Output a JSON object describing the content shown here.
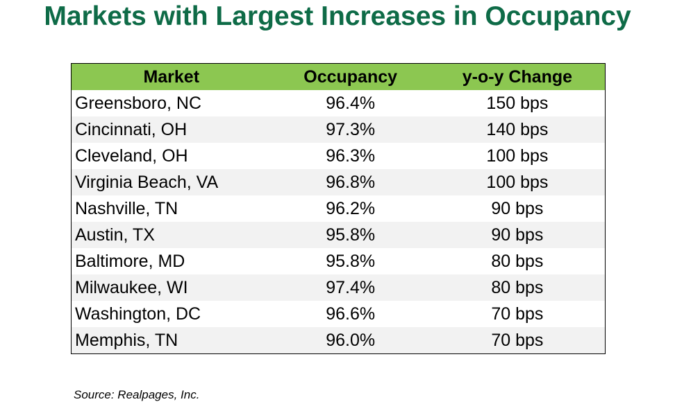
{
  "title": "Markets with Largest Increases in Occupancy",
  "colors": {
    "title": "#0e6b47",
    "header_bg": "#8cc751",
    "stripe_bg": "#f2f2f2"
  },
  "table": {
    "headers": [
      "Market",
      "Occupancy",
      "y-o-y Change"
    ],
    "rows": [
      [
        "Greensboro, NC",
        "96.4%",
        "150 bps"
      ],
      [
        "Cincinnati, OH",
        "97.3%",
        "140 bps"
      ],
      [
        "Cleveland, OH",
        "96.3%",
        "100 bps"
      ],
      [
        "Virginia Beach, VA",
        "96.8%",
        "100 bps"
      ],
      [
        "Nashville, TN",
        "96.2%",
        "90 bps"
      ],
      [
        "Austin, TX",
        "95.8%",
        "90 bps"
      ],
      [
        "Baltimore, MD",
        "95.8%",
        "80 bps"
      ],
      [
        "Milwaukee, WI",
        "97.4%",
        "80 bps"
      ],
      [
        "Washington, DC",
        "96.6%",
        "70 bps"
      ],
      [
        "Memphis, TN",
        "96.0%",
        "70 bps"
      ]
    ]
  },
  "source": "Source: Realpages, Inc."
}
